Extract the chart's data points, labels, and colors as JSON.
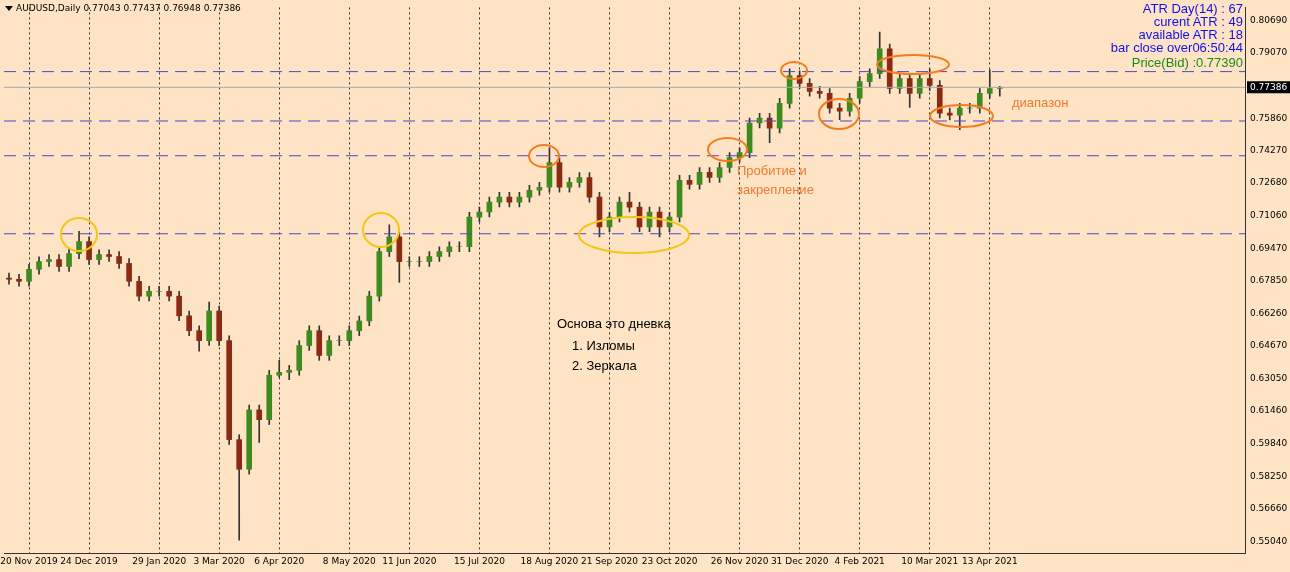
{
  "chart_data": {
    "type": "candlestick",
    "title": "AUDUSD,Daily  0.77043 0.77437 0.76948 0.77386",
    "categories": [
      null,
      null,
      "20 Nov 2019",
      null,
      null,
      null,
      null,
      null,
      "24 Dec 2019",
      null,
      null,
      null,
      null,
      null,
      null,
      "29 Jan 2020",
      null,
      null,
      null,
      null,
      null,
      "3 Mar 2020",
      null,
      null,
      null,
      null,
      null,
      "6 Apr 2020",
      null,
      null,
      null,
      null,
      null,
      null,
      "8 May 2020",
      null,
      null,
      null,
      null,
      null,
      "11 Jun 2020",
      null,
      null,
      null,
      null,
      null,
      null,
      "15 Jul 2020",
      null,
      null,
      null,
      null,
      null,
      null,
      "18 Aug 2020",
      null,
      null,
      null,
      null,
      null,
      "21 Sep 2020",
      null,
      null,
      null,
      null,
      null,
      "23 Oct 2020",
      null,
      null,
      null,
      null,
      null,
      null,
      "26 Nov 2020",
      null,
      null,
      null,
      null,
      null,
      "31 Dec 2020",
      null,
      null,
      null,
      null,
      null,
      "4 Feb 2021",
      null,
      null,
      null,
      null,
      null,
      null,
      "10 Mar 2021",
      null,
      null,
      null,
      null,
      null,
      "13 Apr 2021",
      null,
      null,
      null,
      null,
      null,
      null,
      null,
      null,
      null,
      null,
      null,
      null,
      null,
      null,
      null,
      null,
      null,
      null,
      null,
      null,
      null,
      null,
      null,
      null,
      null
    ],
    "ohlc": [
      [
        0.68,
        0.6824,
        0.677,
        0.6794
      ],
      [
        0.6794,
        0.6818,
        0.676,
        0.6784
      ],
      [
        0.6784,
        0.6867,
        0.676,
        0.6843
      ],
      [
        0.6843,
        0.6905,
        0.6819,
        0.6881
      ],
      [
        0.6881,
        0.6915,
        0.6857,
        0.6891
      ],
      [
        0.6891,
        0.6915,
        0.6833,
        0.6857
      ],
      [
        0.6857,
        0.6944,
        0.6833,
        0.692
      ],
      [
        0.692,
        0.703,
        0.6896,
        0.6979
      ],
      [
        0.6979,
        0.7003,
        0.6867,
        0.6891
      ],
      [
        0.6891,
        0.6939,
        0.6867,
        0.6915
      ],
      [
        0.6915,
        0.6939,
        0.6882,
        0.6906
      ],
      [
        0.6906,
        0.693,
        0.6848,
        0.6872
      ],
      [
        0.6872,
        0.6896,
        0.676,
        0.6784
      ],
      [
        0.6784,
        0.6808,
        0.6687,
        0.6711
      ],
      [
        0.6711,
        0.6759,
        0.6687,
        0.6735
      ],
      [
        0.6735,
        0.6759,
        0.6711,
        0.6735
      ],
      [
        0.6735,
        0.6759,
        0.6687,
        0.6711
      ],
      [
        0.6711,
        0.6735,
        0.659,
        0.6614
      ],
      [
        0.6614,
        0.6638,
        0.6517,
        0.6541
      ],
      [
        0.6541,
        0.6565,
        0.644,
        0.6492
      ],
      [
        0.6492,
        0.6682,
        0.6468,
        0.6638
      ],
      [
        0.6638,
        0.6662,
        0.6468,
        0.6492
      ],
      [
        0.6492,
        0.6516,
        0.5981,
        0.6005
      ],
      [
        0.6005,
        0.6029,
        0.551,
        0.5859
      ],
      [
        0.5859,
        0.6175,
        0.5835,
        0.6151
      ],
      [
        0.6151,
        0.6175,
        0.5991,
        0.6103
      ],
      [
        0.6103,
        0.6346,
        0.6079,
        0.6322
      ],
      [
        0.6322,
        0.6395,
        0.6312,
        0.6336
      ],
      [
        0.6336,
        0.637,
        0.63,
        0.6346
      ],
      [
        0.6346,
        0.6492,
        0.6322,
        0.6468
      ],
      [
        0.6468,
        0.6565,
        0.6444,
        0.6541
      ],
      [
        0.6541,
        0.6565,
        0.6395,
        0.6419
      ],
      [
        0.6419,
        0.6516,
        0.6395,
        0.6492
      ],
      [
        0.6492,
        0.6516,
        0.6468,
        0.6492
      ],
      [
        0.6492,
        0.6565,
        0.6468,
        0.6541
      ],
      [
        0.6541,
        0.6613,
        0.6517,
        0.6589
      ],
      [
        0.6589,
        0.6735,
        0.6565,
        0.6711
      ],
      [
        0.6711,
        0.6954,
        0.6687,
        0.693
      ],
      [
        0.693,
        0.7062,
        0.6906,
        0.7003
      ],
      [
        0.7003,
        0.7027,
        0.6779,
        0.6881
      ],
      [
        0.6881,
        0.6905,
        0.6857,
        0.6881
      ],
      [
        0.6881,
        0.6905,
        0.6857,
        0.6881
      ],
      [
        0.6881,
        0.693,
        0.6857,
        0.6906
      ],
      [
        0.6906,
        0.6954,
        0.6882,
        0.693
      ],
      [
        0.693,
        0.6978,
        0.6906,
        0.6954
      ],
      [
        0.6954,
        0.6978,
        0.693,
        0.6954
      ],
      [
        0.6954,
        0.7124,
        0.693,
        0.71
      ],
      [
        0.71,
        0.7149,
        0.7076,
        0.7125
      ],
      [
        0.7125,
        0.7198,
        0.7101,
        0.7174
      ],
      [
        0.7174,
        0.7222,
        0.715,
        0.7198
      ],
      [
        0.7198,
        0.7222,
        0.715,
        0.7174
      ],
      [
        0.7174,
        0.7222,
        0.715,
        0.7198
      ],
      [
        0.7198,
        0.7256,
        0.7174,
        0.7232
      ],
      [
        0.7232,
        0.7271,
        0.7208,
        0.7247
      ],
      [
        0.7247,
        0.7441,
        0.7223,
        0.7368
      ],
      [
        0.7368,
        0.7392,
        0.7223,
        0.7247
      ],
      [
        0.7247,
        0.7295,
        0.7223,
        0.7271
      ],
      [
        0.7271,
        0.7319,
        0.7247,
        0.7295
      ],
      [
        0.7295,
        0.7319,
        0.7174,
        0.7198
      ],
      [
        0.7198,
        0.7222,
        0.7003,
        0.7052
      ],
      [
        0.7052,
        0.7124,
        0.7028,
        0.71
      ],
      [
        0.71,
        0.7198,
        0.7076,
        0.7174
      ],
      [
        0.7174,
        0.7222,
        0.7125,
        0.7149
      ],
      [
        0.7149,
        0.7173,
        0.7028,
        0.7052
      ],
      [
        0.7052,
        0.7149,
        0.7028,
        0.7125
      ],
      [
        0.7125,
        0.7149,
        0.7003,
        0.7052
      ],
      [
        0.7052,
        0.7124,
        0.7028,
        0.71
      ],
      [
        0.71,
        0.7305,
        0.7076,
        0.7281
      ],
      [
        0.7281,
        0.7305,
        0.7237,
        0.7261
      ],
      [
        0.7261,
        0.7344,
        0.7237,
        0.732
      ],
      [
        0.732,
        0.7344,
        0.7271,
        0.7295
      ],
      [
        0.7295,
        0.7368,
        0.7271,
        0.7344
      ],
      [
        0.7344,
        0.7417,
        0.732,
        0.7393
      ],
      [
        0.7393,
        0.7441,
        0.7369,
        0.7417
      ],
      [
        0.7417,
        0.7587,
        0.7393,
        0.7563
      ],
      [
        0.7563,
        0.7611,
        0.7539,
        0.7587
      ],
      [
        0.7587,
        0.7611,
        0.7466,
        0.7538
      ],
      [
        0.7538,
        0.7684,
        0.7514,
        0.766
      ],
      [
        0.766,
        0.783,
        0.7636,
        0.7796
      ],
      [
        0.7796,
        0.782,
        0.7734,
        0.7758
      ],
      [
        0.7758,
        0.7782,
        0.7695,
        0.7719
      ],
      [
        0.7719,
        0.7743,
        0.7685,
        0.7709
      ],
      [
        0.7709,
        0.7733,
        0.7612,
        0.7636
      ],
      [
        0.7636,
        0.766,
        0.758,
        0.7621
      ],
      [
        0.7621,
        0.7709,
        0.7597,
        0.7685
      ],
      [
        0.7685,
        0.7791,
        0.7661,
        0.7767
      ],
      [
        0.7767,
        0.783,
        0.7743,
        0.7806
      ],
      [
        0.7806,
        0.8011,
        0.7782,
        0.7928
      ],
      [
        0.7928,
        0.7952,
        0.7709,
        0.7733
      ],
      [
        0.7733,
        0.7806,
        0.7709,
        0.7782
      ],
      [
        0.7782,
        0.7806,
        0.764,
        0.7709
      ],
      [
        0.7709,
        0.7806,
        0.7685,
        0.7782
      ],
      [
        0.7782,
        0.783,
        0.7724,
        0.7748
      ],
      [
        0.7748,
        0.7772,
        0.7588,
        0.7612
      ],
      [
        0.7612,
        0.7636,
        0.7578,
        0.7602
      ],
      [
        0.7602,
        0.766,
        0.753,
        0.7636
      ],
      [
        0.7636,
        0.766,
        0.7612,
        0.7636
      ],
      [
        0.7636,
        0.7733,
        0.7612,
        0.7709
      ],
      [
        0.7709,
        0.7825,
        0.7685,
        0.7733
      ],
      [
        0.7733,
        0.7744,
        0.7695,
        0.7739
      ],
      null,
      null,
      null,
      null,
      null,
      null,
      null,
      null,
      null,
      null,
      null,
      null,
      null,
      null,
      null,
      null,
      null,
      null,
      null,
      null,
      null,
      null,
      null,
      null
    ],
    "ylim": [
      0.5446,
      0.8132
    ],
    "yticks": [
      {
        "value": 0.8069,
        "label": "0.80690"
      },
      {
        "value": 0.7907,
        "label": "0.79070"
      },
      {
        "value": 0.7586,
        "label": "0.75860"
      },
      {
        "value": 0.7427,
        "label": "0.74270"
      },
      {
        "value": 0.7268,
        "label": "0.72680"
      },
      {
        "value": 0.7106,
        "label": "0.71060"
      },
      {
        "value": 0.6947,
        "label": "0.69470"
      },
      {
        "value": 0.6785,
        "label": "0.67850"
      },
      {
        "value": 0.6626,
        "label": "0.66260"
      },
      {
        "value": 0.6467,
        "label": "0.64670"
      },
      {
        "value": 0.6305,
        "label": "0.63050"
      },
      {
        "value": 0.6146,
        "label": "0.61460"
      },
      {
        "value": 0.5984,
        "label": "0.59840"
      },
      {
        "value": 0.5825,
        "label": "0.58250"
      },
      {
        "value": 0.5666,
        "label": "0.56660"
      },
      {
        "value": 0.5504,
        "label": "0.55040"
      }
    ],
    "ref_lines": [
      {
        "axis": "y",
        "value": 0.7816,
        "color": "#4848c8",
        "line_style": "dashed"
      },
      {
        "axis": "y",
        "value": 0.7573,
        "color": "#4848c8",
        "line_style": "dashed"
      },
      {
        "axis": "y",
        "value": 0.7402,
        "color": "#4848c8",
        "line_style": "dashed"
      },
      {
        "axis": "y",
        "value": 0.7018,
        "color": "#4848c8",
        "line_style": "dashed"
      },
      {
        "axis": "y",
        "value": 0.77386,
        "label": "0.77386",
        "color": "#a8a8a8",
        "line_style": "solid"
      }
    ],
    "annotations": [
      "Основа это дневка",
      "1. Изломы",
      "2. Зеркала",
      "Пробитие и закрепление",
      "диапазон",
      "ATR Day(14) :   67",
      "curent ATR :   49",
      "available ATR :   18",
      "bar close over06:50:44",
      "Price(Bid) :0.77390"
    ],
    "grid": "x",
    "legend": false
  }
}
